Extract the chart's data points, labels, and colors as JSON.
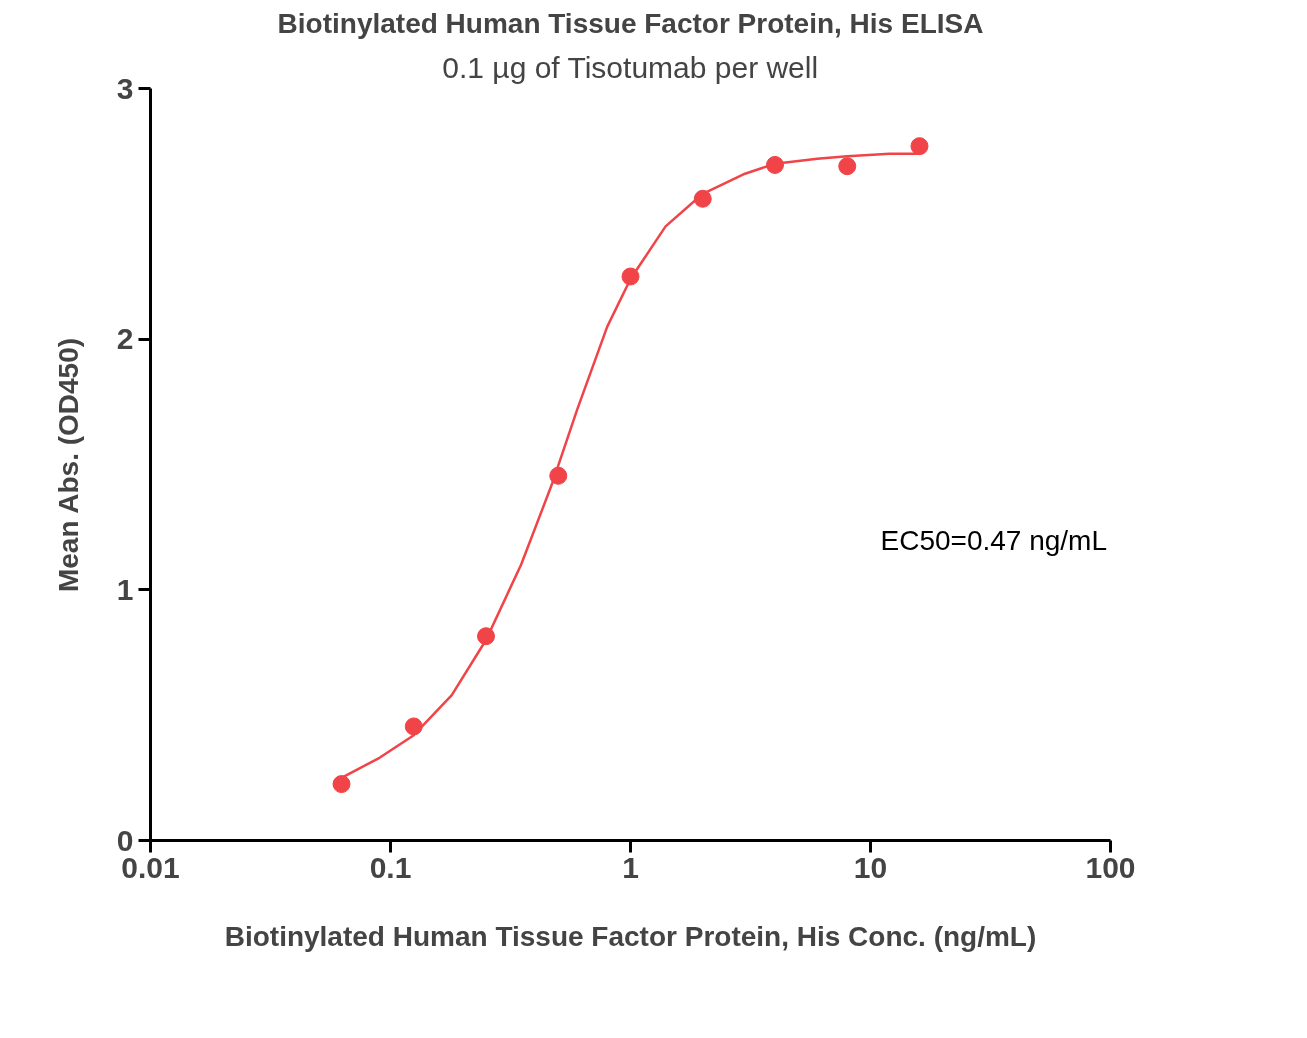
{
  "chart_data": {
    "type": "scatter",
    "title": "Biotinylated Human Tissue Factor Protein, His ELISA",
    "subtitle": "0.1 µg of Tisotumab per well",
    "xlabel": "Biotinylated Human Tissue Factor Protein, His Conc. (ng/mL)",
    "ylabel": "Mean Abs. (OD450)",
    "log": "x",
    "xlim": [
      0.01,
      100
    ],
    "xticks": [
      0.01,
      0.1,
      1,
      10,
      100
    ],
    "ylim": [
      0,
      3
    ],
    "yticks": [
      0,
      1,
      2,
      3
    ],
    "grid": false,
    "series": [
      {
        "marker": "circle",
        "color": "#f04448",
        "x": [
          0.0625,
          0.125,
          0.25,
          0.5,
          1,
          2,
          4,
          8,
          16
        ],
        "values": [
          0.225,
          0.455,
          0.815,
          1.455,
          2.25,
          2.56,
          2.695,
          2.69,
          2.77
        ]
      },
      {
        "type": "line",
        "marker": "none",
        "color": "#f04448",
        "x": [
          0.0625,
          0.09,
          0.125,
          0.18,
          0.25,
          0.35,
          0.47,
          0.6,
          0.8,
          1,
          1.4,
          2,
          3,
          4,
          6,
          8,
          12,
          16
        ],
        "values": [
          0.25,
          0.33,
          0.42,
          0.58,
          0.8,
          1.1,
          1.42,
          1.72,
          2.05,
          2.24,
          2.45,
          2.58,
          2.66,
          2.7,
          2.72,
          2.73,
          2.74,
          2.74
        ]
      }
    ],
    "annotations": [
      "EC50=0.47 ng/mL"
    ]
  }
}
